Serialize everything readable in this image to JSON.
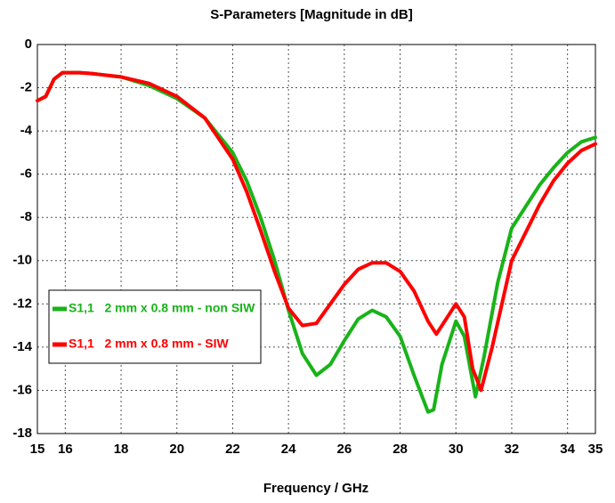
{
  "chart_data": {
    "type": "line",
    "title": "S-Parameters [Magnitude in dB]",
    "x_label": "Frequency / GHz",
    "xlim": [
      15,
      35
    ],
    "xticks": [
      15,
      16,
      18,
      20,
      22,
      24,
      26,
      28,
      30,
      32,
      34,
      35
    ],
    "ylim": [
      -18,
      0
    ],
    "yticks": [
      0,
      -2,
      -4,
      -6,
      -8,
      -10,
      -12,
      -14,
      -16,
      -18
    ],
    "grid": true,
    "legend_position": "left",
    "series": [
      {
        "name": "S1,1   2 mm x 0.8 mm - non SIW",
        "color": "#19b319",
        "x": [
          15,
          15.3,
          15.6,
          15.9,
          16.5,
          17,
          18,
          19,
          20,
          21,
          22,
          22.5,
          23,
          23.5,
          24,
          24.5,
          25,
          25.5,
          26,
          26.5,
          27,
          27.5,
          28,
          28.5,
          29,
          29.2,
          29.5,
          30,
          30.3,
          30.7,
          31,
          31.5,
          32,
          33,
          33.5,
          34,
          34.5,
          35
        ],
        "values": [
          -2.6,
          -2.4,
          -1.6,
          -1.3,
          -1.3,
          -1.35,
          -1.5,
          -1.9,
          -2.5,
          -3.4,
          -5.0,
          -6.3,
          -8.0,
          -10.0,
          -12.3,
          -14.3,
          -15.3,
          -14.8,
          -13.7,
          -12.7,
          -12.3,
          -12.6,
          -13.5,
          -15.3,
          -17.0,
          -16.9,
          -14.8,
          -12.8,
          -13.5,
          -16.3,
          -14.5,
          -11.0,
          -8.5,
          -6.5,
          -5.7,
          -5.0,
          -4.5,
          -4.3
        ]
      },
      {
        "name": "S1,1   2 mm x 0.8 mm - SIW",
        "color": "#ff0000",
        "x": [
          15,
          15.3,
          15.6,
          15.9,
          16.5,
          17,
          18,
          19,
          20,
          21,
          22,
          22.5,
          23,
          23.5,
          24,
          24.5,
          25,
          25.5,
          26,
          26.5,
          27,
          27.5,
          28,
          28.5,
          29,
          29.3,
          29.6,
          30,
          30.3,
          30.6,
          30.9,
          31.3,
          32,
          33,
          33.5,
          34,
          34.5,
          35
        ],
        "values": [
          -2.6,
          -2.4,
          -1.6,
          -1.3,
          -1.3,
          -1.35,
          -1.5,
          -1.8,
          -2.4,
          -3.4,
          -5.3,
          -6.8,
          -8.6,
          -10.5,
          -12.2,
          -13.0,
          -12.9,
          -12.0,
          -11.1,
          -10.4,
          -10.1,
          -10.1,
          -10.5,
          -11.4,
          -12.8,
          -13.4,
          -12.8,
          -12.0,
          -12.6,
          -15.0,
          -16.0,
          -14.0,
          -10.0,
          -7.4,
          -6.3,
          -5.5,
          -4.9,
          -4.6
        ]
      }
    ]
  }
}
